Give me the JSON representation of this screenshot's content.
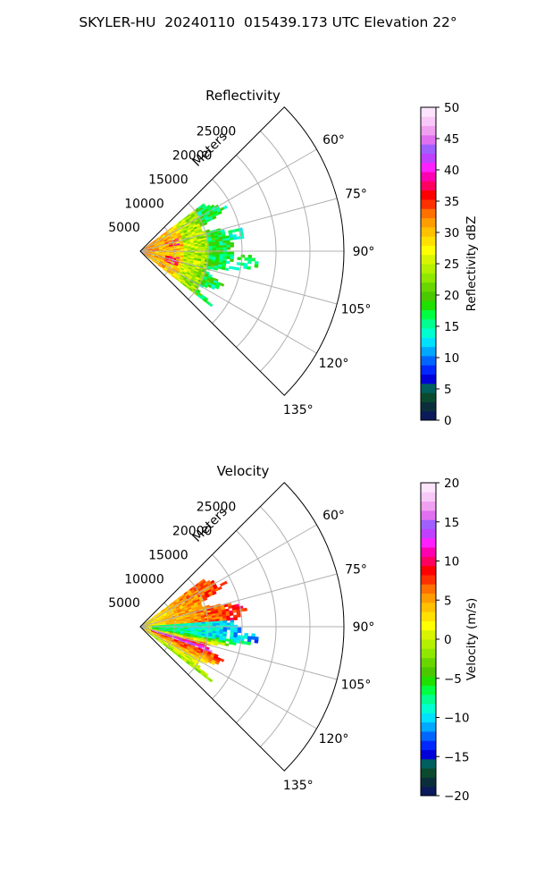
{
  "figure_title": "SKYLER-HU  20240110  015439.173 UTC Elevation 22°",
  "colors": {
    "axis": "#000000",
    "grid": "#b0b0b0"
  },
  "chart_data": [
    {
      "type": "heatmap",
      "projection": "polar-sector",
      "title": "Reflectivity",
      "range_axis_label": "Meters",
      "range_ticks": [
        5000,
        10000,
        15000,
        20000,
        25000
      ],
      "range_tick_labels": [
        "5000",
        "10000",
        "15000",
        "20000",
        "25000"
      ],
      "range_max": 30000,
      "azimuth_min_deg": 45,
      "azimuth_max_deg": 135,
      "azimuth_ticks_deg": [
        60,
        75,
        90,
        105,
        120,
        135
      ],
      "azimuth_tick_labels": [
        "60°",
        "75°",
        "90°",
        "105°",
        "120°",
        "135°"
      ],
      "data_azimuth_range_deg": [
        53,
        127
      ],
      "data_range_max_m": 18000,
      "grid": true,
      "colorbar": {
        "label": "Reflectivity dBZ",
        "min": 0,
        "max": 50,
        "ticks": [
          0,
          5,
          10,
          15,
          20,
          25,
          30,
          35,
          40,
          45,
          50
        ],
        "tick_labels": [
          "0",
          "5",
          "10",
          "15",
          "20",
          "25",
          "30",
          "35",
          "40",
          "45",
          "50"
        ],
        "colors": [
          "#0a1a5a",
          "#0a2f3a",
          "#0b4a2e",
          "#005f5f",
          "#0000d8",
          "#0028ff",
          "#0066ff",
          "#00a8ff",
          "#00e0ff",
          "#00ffd0",
          "#00ff90",
          "#00ff40",
          "#20e000",
          "#4cc800",
          "#6ad600",
          "#90e800",
          "#b4f000",
          "#d8f400",
          "#ffff00",
          "#ffe000",
          "#ffc000",
          "#ff9c00",
          "#ff7000",
          "#ff3000",
          "#ff0000",
          "#ff0060",
          "#ff00b0",
          "#ff20ff",
          "#c040ff",
          "#a060ff",
          "#e070f0",
          "#f0a0f0",
          "#f8c8f8",
          "#fde4fd"
        ]
      }
    },
    {
      "type": "heatmap",
      "projection": "polar-sector",
      "title": "Velocity",
      "range_axis_label": "Meters",
      "range_ticks": [
        5000,
        10000,
        15000,
        20000,
        25000
      ],
      "range_tick_labels": [
        "5000",
        "10000",
        "15000",
        "20000",
        "25000"
      ],
      "range_max": 30000,
      "azimuth_min_deg": 45,
      "azimuth_max_deg": 135,
      "azimuth_ticks_deg": [
        60,
        75,
        90,
        105,
        120,
        135
      ],
      "azimuth_tick_labels": [
        "60°",
        "75°",
        "90°",
        "105°",
        "120°",
        "135°"
      ],
      "data_azimuth_range_deg": [
        53,
        127
      ],
      "data_range_max_m": 18000,
      "grid": true,
      "colorbar": {
        "label": "Velocity (m/s)",
        "min": -20,
        "max": 20,
        "ticks": [
          -20,
          -15,
          -10,
          -5,
          0,
          5,
          10,
          15,
          20
        ],
        "tick_labels": [
          "−20",
          "−15",
          "−10",
          "−5",
          "0",
          "5",
          "10",
          "15",
          "20"
        ],
        "colors": [
          "#0a1a5a",
          "#0a2f3a",
          "#0b4a2e",
          "#005f5f",
          "#0000d8",
          "#0028ff",
          "#0066ff",
          "#00a8ff",
          "#00e0ff",
          "#00ffd0",
          "#00ff90",
          "#00ff40",
          "#20e000",
          "#4cc800",
          "#6ad600",
          "#90e800",
          "#b4f000",
          "#d8f400",
          "#ffff00",
          "#ffe000",
          "#ffc000",
          "#ff9c00",
          "#ff7000",
          "#ff3000",
          "#ff0000",
          "#ff0060",
          "#ff00b0",
          "#ff20ff",
          "#c040ff",
          "#a060ff",
          "#e070f0",
          "#f0a0f0",
          "#f8c8f8",
          "#fde4fd"
        ]
      }
    }
  ]
}
